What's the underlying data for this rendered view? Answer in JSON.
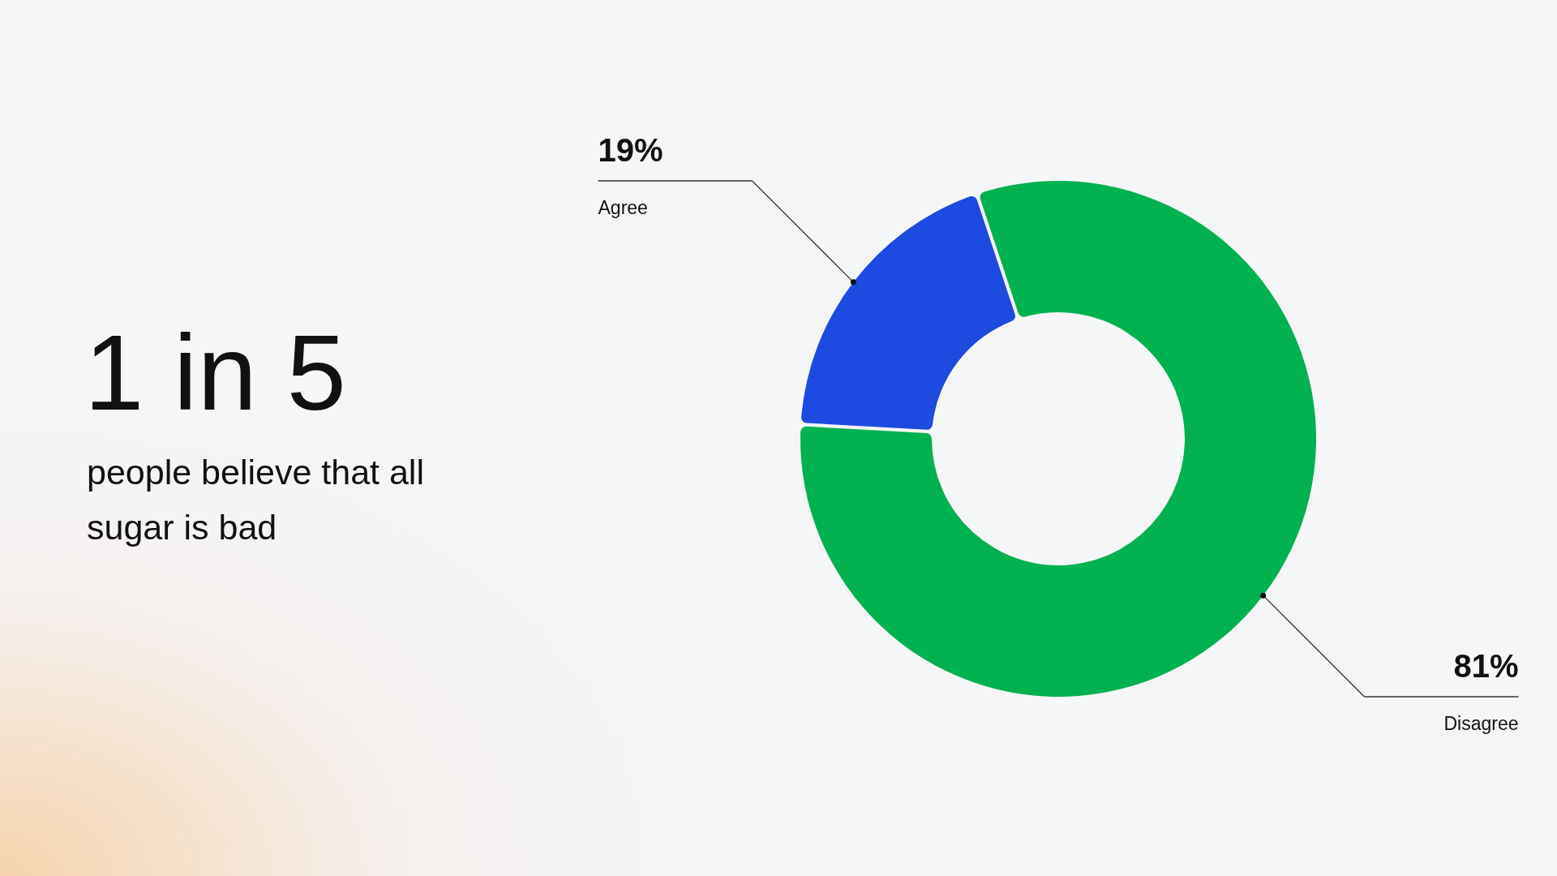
{
  "chart_data": {
    "type": "donut",
    "title": "1 in 5",
    "subtitle": "people believe that all sugar is bad",
    "categories": [
      "Agree",
      "Disagree"
    ],
    "values": [
      19,
      81
    ],
    "colors": [
      "#1d4ae0",
      "#00b14f"
    ],
    "value_labels": [
      "19%",
      "81%"
    ]
  }
}
